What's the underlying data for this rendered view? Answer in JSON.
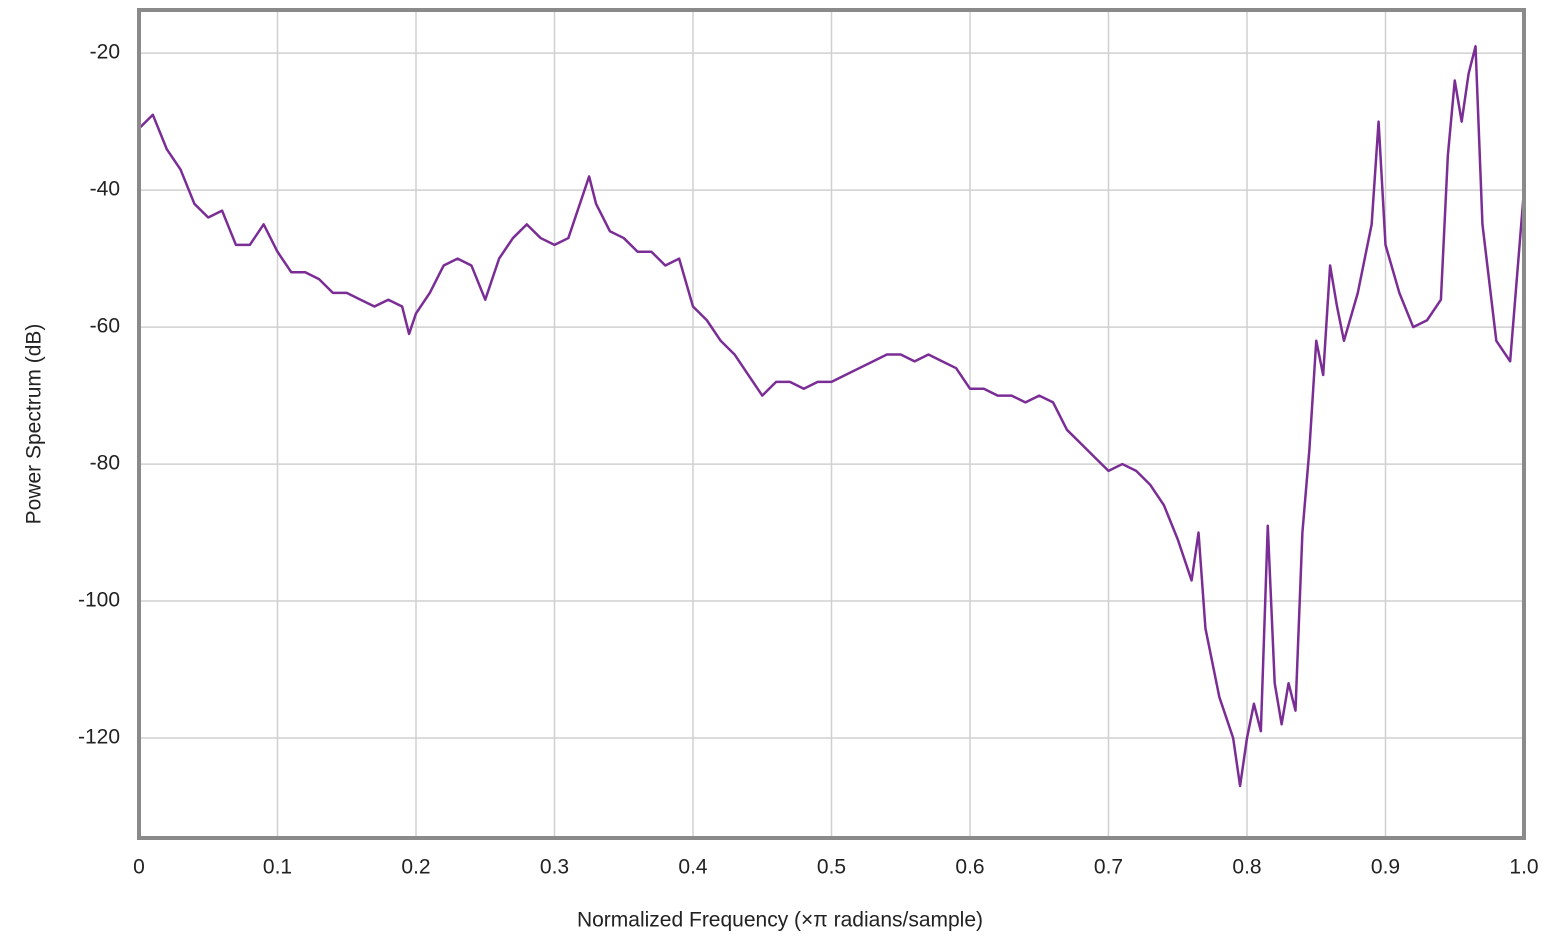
{
  "chart_data": {
    "type": "line",
    "xlabel": "Normalized Frequency (×π radians/sample)",
    "ylabel": "Power Spectrum (dB)",
    "x": [
      0,
      0.01,
      0.02,
      0.03,
      0.04,
      0.05,
      0.06,
      0.07,
      0.08,
      0.09,
      0.1,
      0.11,
      0.12,
      0.13,
      0.14,
      0.15,
      0.16,
      0.17,
      0.18,
      0.19,
      0.195,
      0.2,
      0.21,
      0.22,
      0.23,
      0.24,
      0.25,
      0.26,
      0.27,
      0.28,
      0.29,
      0.3,
      0.31,
      0.32,
      0.325,
      0.33,
      0.34,
      0.35,
      0.36,
      0.37,
      0.38,
      0.39,
      0.4,
      0.41,
      0.42,
      0.43,
      0.44,
      0.45,
      0.46,
      0.47,
      0.48,
      0.49,
      0.5,
      0.51,
      0.52,
      0.53,
      0.54,
      0.55,
      0.56,
      0.57,
      0.58,
      0.59,
      0.6,
      0.61,
      0.62,
      0.63,
      0.64,
      0.65,
      0.66,
      0.67,
      0.68,
      0.69,
      0.7,
      0.71,
      0.72,
      0.73,
      0.74,
      0.75,
      0.76,
      0.765,
      0.77,
      0.78,
      0.79,
      0.795,
      0.8,
      0.805,
      0.81,
      0.815,
      0.82,
      0.825,
      0.83,
      0.835,
      0.84,
      0.845,
      0.85,
      0.855,
      0.86,
      0.865,
      0.87,
      0.88,
      0.89,
      0.895,
      0.9,
      0.91,
      0.92,
      0.93,
      0.94,
      0.945,
      0.95,
      0.955,
      0.96,
      0.965,
      0.97,
      0.98,
      0.99,
      1.0
    ],
    "series": [
      {
        "color": "#7b2d96",
        "values": [
          -31,
          -29,
          -34,
          -37,
          -42,
          -44,
          -43,
          -48,
          -48,
          -45,
          -49,
          -52,
          -52,
          -53,
          -55,
          -55,
          -56,
          -57,
          -56,
          -57,
          -61,
          -58,
          -55,
          -51,
          -50,
          -51,
          -56,
          -50,
          -47,
          -45,
          -47,
          -48,
          -47,
          -41,
          -38,
          -42,
          -46,
          -47,
          -49,
          -49,
          -51,
          -50,
          -57,
          -59,
          -62,
          -64,
          -67,
          -70,
          -68,
          -68,
          -69,
          -68,
          -68,
          -67,
          -66,
          -65,
          -64,
          -64,
          -65,
          -64,
          -65,
          -66,
          -69,
          -69,
          -70,
          -70,
          -71,
          -70,
          -71,
          -75,
          -77,
          -79,
          -81,
          -80,
          -81,
          -83,
          -86,
          -91,
          -97,
          -90,
          -104,
          -114,
          -120,
          -127,
          -120,
          -115,
          -119,
          -89,
          -112,
          -118,
          -112,
          -116,
          -90,
          -78,
          -62,
          -67,
          -51,
          -57,
          -62,
          -55,
          -45,
          -30,
          -48,
          -55,
          -60,
          -59,
          -56,
          -35,
          -24,
          -30,
          -23,
          -19,
          -45,
          -62,
          -65,
          -40
        ]
      }
    ],
    "xlim": [
      0,
      1
    ],
    "ylim": [
      -134.6,
      -13.7
    ],
    "xticks": [
      0,
      0.1,
      0.2,
      0.3,
      0.4,
      0.5,
      0.6,
      0.7,
      0.8,
      0.9,
      {
        "value": 1,
        "label": "1.0"
      }
    ],
    "yticks": [
      -120,
      -100,
      -80,
      -60,
      -40,
      -20
    ],
    "grid": true
  }
}
